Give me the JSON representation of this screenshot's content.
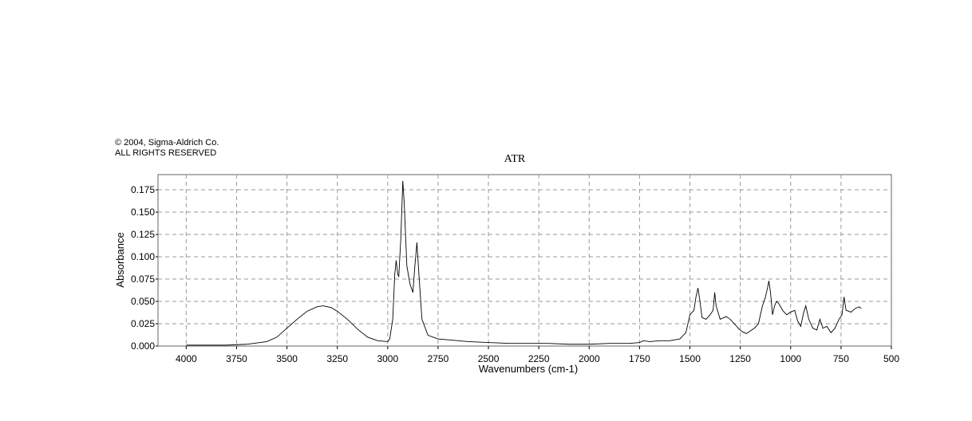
{
  "copyright": [
    "© 2004, Sigma-Aldrich Co.",
    "ALL RIGHTS RESERVED"
  ],
  "chart_data": {
    "type": "line",
    "title": "ATR",
    "x_label": "Wavenumbers (cm-1)",
    "y_label": "Absorbance",
    "grid": true,
    "xlim": [
      4140,
      500
    ],
    "ylim": [
      0,
      0.192
    ],
    "xticks": [
      4000,
      3750,
      3500,
      3250,
      3000,
      2750,
      2500,
      2250,
      2000,
      1750,
      1500,
      1250,
      1000,
      750,
      500
    ],
    "yticks": [
      {
        "value": 0,
        "label": "0.000"
      },
      {
        "value": 0.025,
        "label": "0.025"
      },
      {
        "value": 0.05,
        "label": "0.050"
      },
      {
        "value": 0.075,
        "label": "0.075"
      },
      {
        "value": 0.1,
        "label": "0.100"
      },
      {
        "value": 0.125,
        "label": "0.125"
      },
      {
        "value": 0.15,
        "label": "0.150"
      },
      {
        "value": 0.175,
        "label": "0.175"
      }
    ],
    "x": [
      4000,
      3900,
      3800,
      3700,
      3600,
      3550,
      3500,
      3450,
      3400,
      3350,
      3320,
      3280,
      3250,
      3200,
      3150,
      3100,
      3050,
      3000,
      2990,
      2975,
      2965,
      2958,
      2950,
      2945,
      2935,
      2925,
      2918,
      2905,
      2890,
      2875,
      2865,
      2855,
      2845,
      2830,
      2800,
      2750,
      2700,
      2650,
      2600,
      2500,
      2400,
      2300,
      2200,
      2100,
      2000,
      1900,
      1800,
      1750,
      1730,
      1700,
      1650,
      1600,
      1550,
      1520,
      1500,
      1480,
      1470,
      1460,
      1450,
      1440,
      1420,
      1400,
      1385,
      1377,
      1370,
      1350,
      1320,
      1300,
      1280,
      1260,
      1240,
      1220,
      1200,
      1180,
      1160,
      1140,
      1125,
      1115,
      1108,
      1100,
      1090,
      1080,
      1070,
      1060,
      1040,
      1020,
      1000,
      980,
      965,
      950,
      935,
      925,
      910,
      890,
      870,
      855,
      840,
      820,
      800,
      780,
      760,
      745,
      735,
      725,
      700,
      680,
      660,
      650
    ],
    "series": [
      {
        "color": "#000000",
        "values": [
          0.001,
          0.001,
          0.001,
          0.002,
          0.005,
          0.01,
          0.02,
          0.03,
          0.039,
          0.044,
          0.045,
          0.043,
          0.039,
          0.03,
          0.019,
          0.01,
          0.006,
          0.005,
          0.008,
          0.03,
          0.08,
          0.096,
          0.08,
          0.078,
          0.12,
          0.185,
          0.16,
          0.09,
          0.07,
          0.06,
          0.09,
          0.116,
          0.08,
          0.03,
          0.012,
          0.008,
          0.007,
          0.006,
          0.005,
          0.004,
          0.003,
          0.003,
          0.003,
          0.002,
          0.002,
          0.003,
          0.003,
          0.004,
          0.006,
          0.005,
          0.006,
          0.006,
          0.008,
          0.015,
          0.035,
          0.04,
          0.055,
          0.065,
          0.05,
          0.032,
          0.03,
          0.035,
          0.04,
          0.06,
          0.045,
          0.03,
          0.033,
          0.03,
          0.025,
          0.02,
          0.016,
          0.014,
          0.017,
          0.02,
          0.025,
          0.045,
          0.055,
          0.065,
          0.073,
          0.06,
          0.035,
          0.045,
          0.05,
          0.048,
          0.04,
          0.035,
          0.038,
          0.04,
          0.028,
          0.022,
          0.038,
          0.045,
          0.03,
          0.02,
          0.018,
          0.03,
          0.02,
          0.022,
          0.015,
          0.02,
          0.03,
          0.035,
          0.055,
          0.04,
          0.038,
          0.042,
          0.044,
          0.042
        ]
      }
    ]
  }
}
